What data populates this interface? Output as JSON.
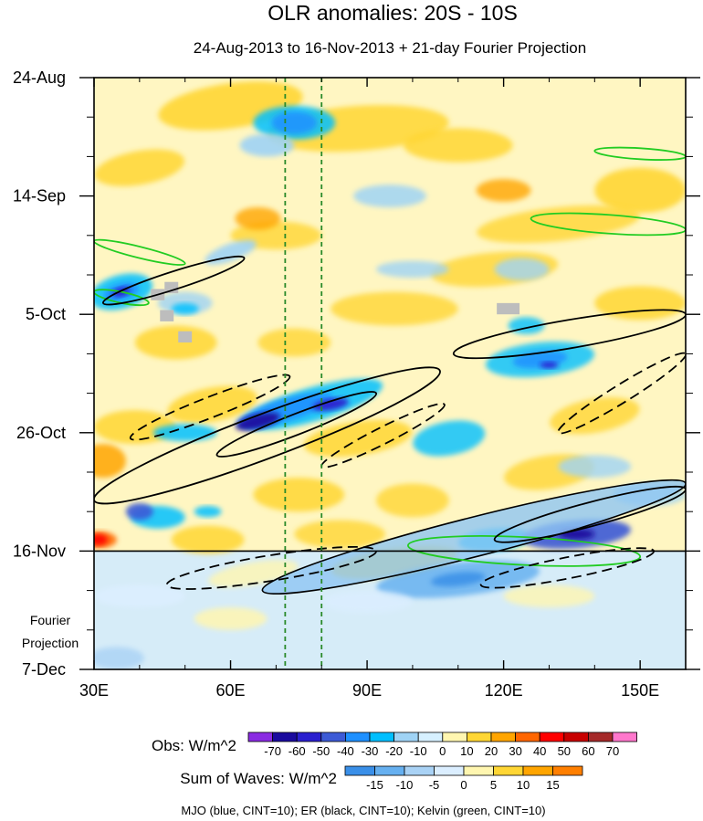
{
  "chart_data": {
    "type": "heatmap",
    "title": "OLR anomalies: 20S - 10S",
    "subtitle": "24-Aug-2013 to 16-Nov-2013 + 21-day Fourier Projection",
    "x_axis": {
      "range": [
        30,
        160
      ],
      "ticks": [
        {
          "value": 30,
          "label": "30E"
        },
        {
          "value": 60,
          "label": "60E"
        },
        {
          "value": 90,
          "label": "90E"
        },
        {
          "value": 120,
          "label": "120E"
        },
        {
          "value": 150,
          "label": "150E"
        }
      ]
    },
    "y_axis": {
      "range_days": [
        0,
        105
      ],
      "ticks": [
        {
          "day": 0,
          "label": "24-Aug"
        },
        {
          "day": 21,
          "label": "14-Sep"
        },
        {
          "day": 42,
          "label": "5-Oct"
        },
        {
          "day": 63,
          "label": "26-Oct"
        },
        {
          "day": 84,
          "label": "16-Nov"
        },
        {
          "day": 105,
          "label": "7-Dec"
        }
      ]
    },
    "projection_start_day": 84,
    "projection_label": [
      "Fourier",
      "Projection"
    ],
    "reference_lines_lon": [
      72,
      80
    ],
    "obs_colorbar": {
      "title": "Obs: W/m^2",
      "labels": [
        "-70",
        "-60",
        "-50",
        "-40",
        "-30",
        "-20",
        "-10",
        "0",
        "10",
        "20",
        "30",
        "40",
        "50",
        "60",
        "70"
      ],
      "colors": [
        "#8a2be2",
        "#1a0a9e",
        "#2a1fcf",
        "#3c5ad6",
        "#1e90ff",
        "#00bfff",
        "#9fd3f5",
        "#d6f0ff",
        "#fff6b0",
        "#ffd634",
        "#ffa500",
        "#ff6600",
        "#ff0000",
        "#c80000",
        "#a52a2a",
        "#ff77cc"
      ]
    },
    "waves_colorbar": {
      "title": "Sum of Waves: W/m^2",
      "labels": [
        "-15",
        "-10",
        "-5",
        "0",
        "5",
        "10",
        "15"
      ],
      "colors": [
        "#3a8fe8",
        "#66b0f0",
        "#a9d2f5",
        "#dbeeff",
        "#fff6b0",
        "#ffd634",
        "#ffa500",
        "#ff7f00"
      ]
    },
    "mjo_contours": [
      {
        "lon": [
          67,
          160
        ],
        "day": [
          91,
          72
        ],
        "note": "positive (solid) ellipse, lower right"
      }
    ],
    "er_contours": [
      {
        "lon": [
          32,
          63
        ],
        "day": [
          40,
          32
        ],
        "sign": "positive"
      },
      {
        "lon": [
          30,
          106
        ],
        "day": [
          75,
          52
        ],
        "sign": "positive"
      },
      {
        "lon": [
          57,
          92
        ],
        "day": [
          67,
          56
        ],
        "sign": "positive"
      },
      {
        "lon": [
          109,
          160
        ],
        "day": [
          49,
          42
        ],
        "sign": "positive"
      },
      {
        "lon": [
          118,
          160
        ],
        "day": [
          82,
          73
        ],
        "sign": "positive"
      },
      {
        "lon": [
          38,
          73
        ],
        "day": [
          64,
          53
        ],
        "sign": "negative"
      },
      {
        "lon": [
          80,
          107
        ],
        "day": [
          69,
          58
        ],
        "sign": "negative"
      },
      {
        "lon": [
          132,
          160
        ],
        "day": [
          63,
          49
        ],
        "sign": "negative"
      },
      {
        "lon": [
          46,
          92
        ],
        "day": [
          90,
          84
        ],
        "sign": "negative"
      },
      {
        "lon": [
          115,
          153
        ],
        "day": [
          90,
          84
        ],
        "sign": "negative"
      }
    ],
    "kelvin_contours": [
      {
        "lon": [
          30,
          50
        ],
        "day": [
          29,
          33
        ],
        "sign": "positive"
      },
      {
        "lon": [
          30,
          42
        ],
        "day": [
          38,
          40
        ],
        "sign": "positive"
      },
      {
        "lon": [
          126,
          160
        ],
        "day": [
          25,
          27
        ],
        "sign": "positive"
      },
      {
        "lon": [
          140,
          160
        ],
        "day": [
          13,
          14
        ],
        "sign": "positive"
      },
      {
        "lon": [
          99,
          150
        ],
        "day": [
          83,
          85
        ],
        "sign": "positive"
      }
    ],
    "footer": "MJO (blue, CINT=10); ER (black, CINT=10); Kelvin (green, CINT=10)"
  }
}
